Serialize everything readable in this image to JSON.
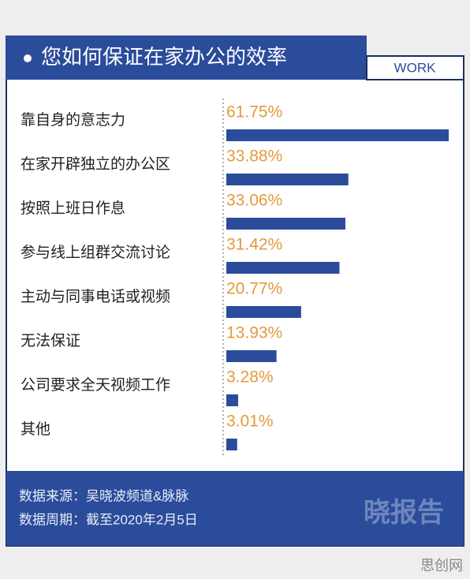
{
  "chart_data": {
    "type": "bar",
    "title": "您如何保证在家办公的效率",
    "tag": "WORK",
    "categories": [
      "靠自身的意志力",
      "在家开辟独立的办公区",
      "按照上班日作息",
      "参与线上组群交流讨论",
      "主动与同事电话或视频",
      "无法保证",
      "公司要求全天视频工作",
      "其他"
    ],
    "values": [
      61.75,
      33.88,
      33.06,
      31.42,
      20.77,
      13.93,
      3.28,
      3.01
    ],
    "value_labels": [
      "61.75%",
      "33.88%",
      "33.06%",
      "31.42%",
      "20.77%",
      "13.93%",
      "3.28%",
      "3.01%"
    ],
    "color": "#2b4c9b",
    "label_color": "#e29b3c",
    "source": "数据来源：吴晓波频道&脉脉",
    "period": "数据周期：截至2020年2月5日",
    "watermark": "晓报告",
    "site_mark": "思创网"
  }
}
